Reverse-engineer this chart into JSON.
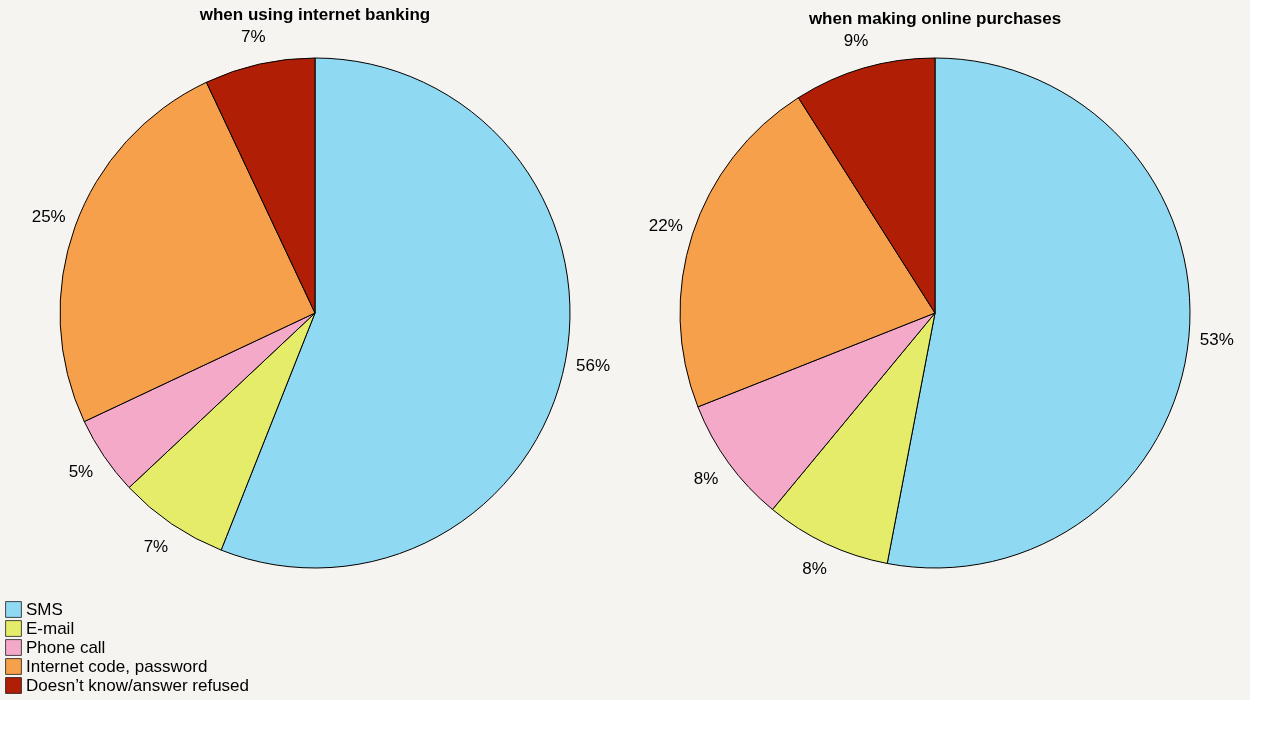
{
  "chart_data": [
    {
      "type": "pie",
      "title": "when using internet banking",
      "categories": [
        "SMS",
        "E-mail",
        "Phone call",
        "Internet code, password",
        "Doesn’t know/answer refused"
      ],
      "values": [
        56,
        7,
        5,
        25,
        7
      ],
      "colors": [
        "#8fd9f2",
        "#e4ec6a",
        "#f5a9c9",
        "#f7a04c",
        "#b01e05"
      ],
      "value_labels": [
        "56%",
        "7%",
        "5%",
        "25%",
        "7%"
      ],
      "legend": "bottom left"
    },
    {
      "type": "pie",
      "title": "when making online purchases",
      "categories": [
        null,
        null,
        null,
        null,
        null
      ],
      "values": [
        53,
        8,
        8,
        22,
        9
      ],
      "colors": [
        "#8fd9f2",
        "#e4ec6a",
        "#f5a9c9",
        "#f7a04c",
        "#b01e05"
      ],
      "value_labels": [
        "53%",
        "8%",
        "8%",
        "22%",
        "9%"
      ],
      "legend": false
    }
  ]
}
